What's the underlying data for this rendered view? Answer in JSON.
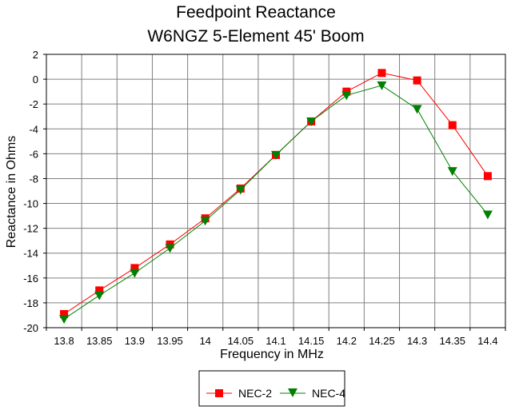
{
  "chart_data": {
    "type": "line",
    "title": "Feedpoint Reactance",
    "subtitle": "W6NGZ 5-Element 45' Boom",
    "xlabel": "Frequency in MHz",
    "ylabel": "Reactance in Ohms",
    "categories": [
      "13.8",
      "13.85",
      "13.9",
      "13.95",
      "14",
      "14.05",
      "14.1",
      "14.15",
      "14.2",
      "14.25",
      "14.3",
      "14.35",
      "14.4"
    ],
    "ylim": [
      -20,
      2
    ],
    "yticks": [
      "2",
      "0",
      "-2",
      "-4",
      "-6",
      "-8",
      "-10",
      "-12",
      "-14",
      "-16",
      "-18",
      "-20"
    ],
    "grid": true,
    "legend_position": "bottom",
    "series": [
      {
        "name": "NEC-2",
        "color": "#ff0000",
        "marker": "square",
        "values": [
          -18.9,
          -17.0,
          -15.2,
          -13.3,
          -11.2,
          -8.8,
          -6.1,
          -3.4,
          -1.0,
          0.5,
          -0.1,
          -3.7,
          -7.8
        ]
      },
      {
        "name": "NEC-4",
        "color": "#008000",
        "marker": "triangle-down",
        "values": [
          -19.3,
          -17.4,
          -15.6,
          -13.6,
          -11.4,
          -8.9,
          -6.1,
          -3.4,
          -1.3,
          -0.5,
          -2.4,
          -7.4,
          -10.9
        ]
      }
    ]
  }
}
